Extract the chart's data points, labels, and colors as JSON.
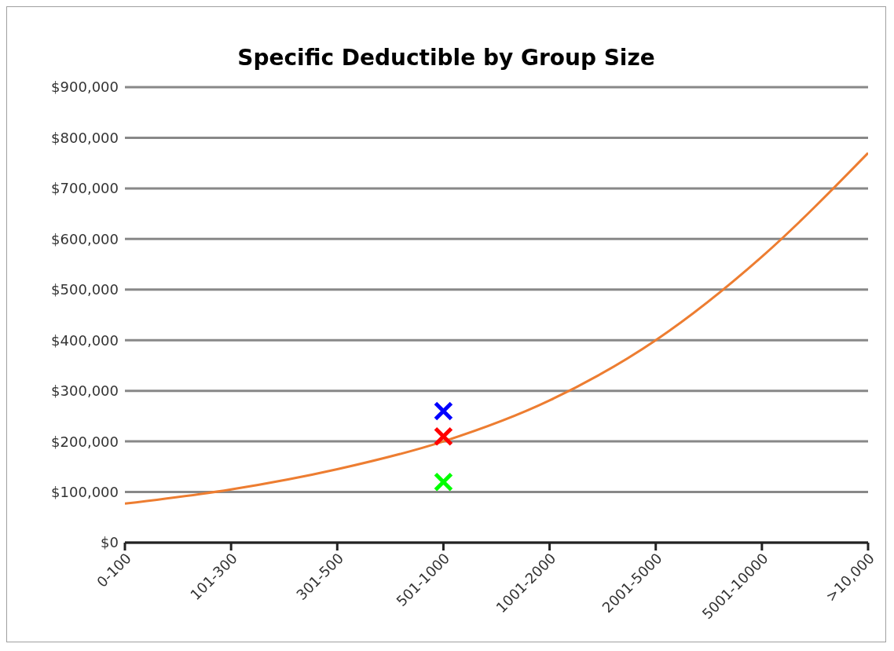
{
  "chart_data": {
    "type": "line",
    "title": "Specific Deductible by Group Size",
    "categories": [
      "0-100",
      "101-300",
      "301-500",
      "501-1000",
      "1001-2000",
      "2001-5000",
      "5001-10000",
      ">10,000"
    ],
    "series": [
      {
        "color": "#ed7d31",
        "values": [
          77000,
          105000,
          145000,
          200000,
          281000,
          400000,
          565000,
          770000
        ]
      },
      {
        "type": "scatter",
        "x": [
          "501-1000"
        ],
        "values": [
          260000
        ],
        "color": "#0000ff",
        "marker": "cross"
      },
      {
        "type": "scatter",
        "x": [
          "501-1000"
        ],
        "values": [
          210000
        ],
        "color": "#ff0000",
        "marker": "cross"
      },
      {
        "type": "scatter",
        "x": [
          "501-1000"
        ],
        "values": [
          120000
        ],
        "color": "#00ff00",
        "marker": "cross"
      }
    ],
    "ylim": [
      0,
      900000
    ],
    "yticks": [
      {
        "value": 0,
        "label": "$0"
      },
      {
        "value": 100000,
        "label": "$100,000"
      },
      {
        "value": 200000,
        "label": "$200,000"
      },
      {
        "value": 300000,
        "label": "$300,000"
      },
      {
        "value": 400000,
        "label": "$400,000"
      },
      {
        "value": 500000,
        "label": "$500,000"
      },
      {
        "value": 600000,
        "label": "$600,000"
      },
      {
        "value": 700000,
        "label": "$700,000"
      },
      {
        "value": 800000,
        "label": "$800,000"
      },
      {
        "value": 900000,
        "label": "$900,000"
      }
    ],
    "grid": "y",
    "marker": "none"
  }
}
